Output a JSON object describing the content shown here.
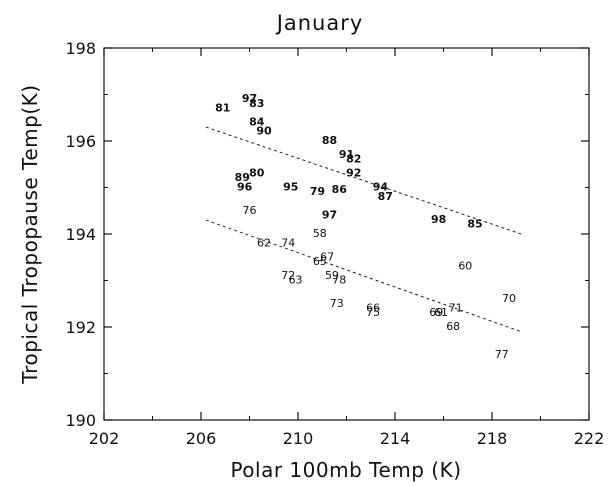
{
  "chart_data": {
    "type": "scatter",
    "title": "January",
    "xlabel": "Polar 100mb Temp (K)",
    "ylabel": "Tropical Tropopause Temp(K)",
    "xlim": [
      202,
      222
    ],
    "ylim": [
      190,
      198
    ],
    "xticks": [
      "202",
      "206",
      "210",
      "214",
      "218",
      "222"
    ],
    "yticks": [
      "190",
      "192",
      "194",
      "196",
      "198"
    ],
    "grid": false,
    "marker": "year-labels",
    "series": [
      {
        "style": "bold",
        "points": [
          {
            "label": "97",
            "x": 208.0,
            "y": 196.9
          },
          {
            "label": "83",
            "x": 208.3,
            "y": 196.8
          },
          {
            "label": "81",
            "x": 206.9,
            "y": 196.7
          },
          {
            "label": "84",
            "x": 208.3,
            "y": 196.4
          },
          {
            "label": "90",
            "x": 208.6,
            "y": 196.2
          },
          {
            "label": "88",
            "x": 211.3,
            "y": 196.0
          },
          {
            "label": "91",
            "x": 212.0,
            "y": 195.7
          },
          {
            "label": "82",
            "x": 212.3,
            "y": 195.6
          },
          {
            "label": "92",
            "x": 212.3,
            "y": 195.3
          },
          {
            "label": "89",
            "x": 207.7,
            "y": 195.2
          },
          {
            "label": "80",
            "x": 208.3,
            "y": 195.3
          },
          {
            "label": "96",
            "x": 207.8,
            "y": 195.0
          },
          {
            "label": "95",
            "x": 209.7,
            "y": 195.0
          },
          {
            "label": "79",
            "x": 210.8,
            "y": 194.9
          },
          {
            "label": "86",
            "x": 211.7,
            "y": 194.95
          },
          {
            "label": "94",
            "x": 213.4,
            "y": 195.0
          },
          {
            "label": "87",
            "x": 213.6,
            "y": 194.8
          },
          {
            "label": "97",
            "x": 211.3,
            "y": 194.4
          },
          {
            "label": "98",
            "x": 215.8,
            "y": 194.3
          },
          {
            "label": "85",
            "x": 217.3,
            "y": 194.2
          }
        ]
      },
      {
        "style": "regular",
        "points": [
          {
            "label": "76",
            "x": 208.0,
            "y": 194.5
          },
          {
            "label": "58",
            "x": 210.9,
            "y": 194.0
          },
          {
            "label": "62",
            "x": 208.6,
            "y": 193.8
          },
          {
            "label": "74",
            "x": 209.6,
            "y": 193.8
          },
          {
            "label": "67",
            "x": 211.2,
            "y": 193.5
          },
          {
            "label": "65",
            "x": 210.9,
            "y": 193.4
          },
          {
            "label": "60",
            "x": 216.9,
            "y": 193.3
          },
          {
            "label": "72",
            "x": 209.6,
            "y": 193.1
          },
          {
            "label": "59",
            "x": 211.4,
            "y": 193.1
          },
          {
            "label": "78",
            "x": 211.7,
            "y": 193.0
          },
          {
            "label": "63",
            "x": 209.9,
            "y": 193.0
          },
          {
            "label": "70",
            "x": 218.7,
            "y": 192.6
          },
          {
            "label": "73",
            "x": 211.6,
            "y": 192.5
          },
          {
            "label": "66",
            "x": 213.1,
            "y": 192.4
          },
          {
            "label": "71",
            "x": 216.5,
            "y": 192.4
          },
          {
            "label": "75",
            "x": 213.1,
            "y": 192.3
          },
          {
            "label": "69",
            "x": 215.7,
            "y": 192.3
          },
          {
            "label": "61",
            "x": 215.9,
            "y": 192.3
          },
          {
            "label": "68",
            "x": 216.4,
            "y": 192.0
          },
          {
            "label": "77",
            "x": 218.4,
            "y": 191.4
          }
        ]
      }
    ],
    "trend_lines": [
      {
        "style": "dashed",
        "x": [
          206.2,
          219.2
        ],
        "y": [
          196.3,
          194.0
        ]
      },
      {
        "style": "dashed",
        "x": [
          206.2,
          219.2
        ],
        "y": [
          194.3,
          191.9
        ]
      }
    ]
  }
}
